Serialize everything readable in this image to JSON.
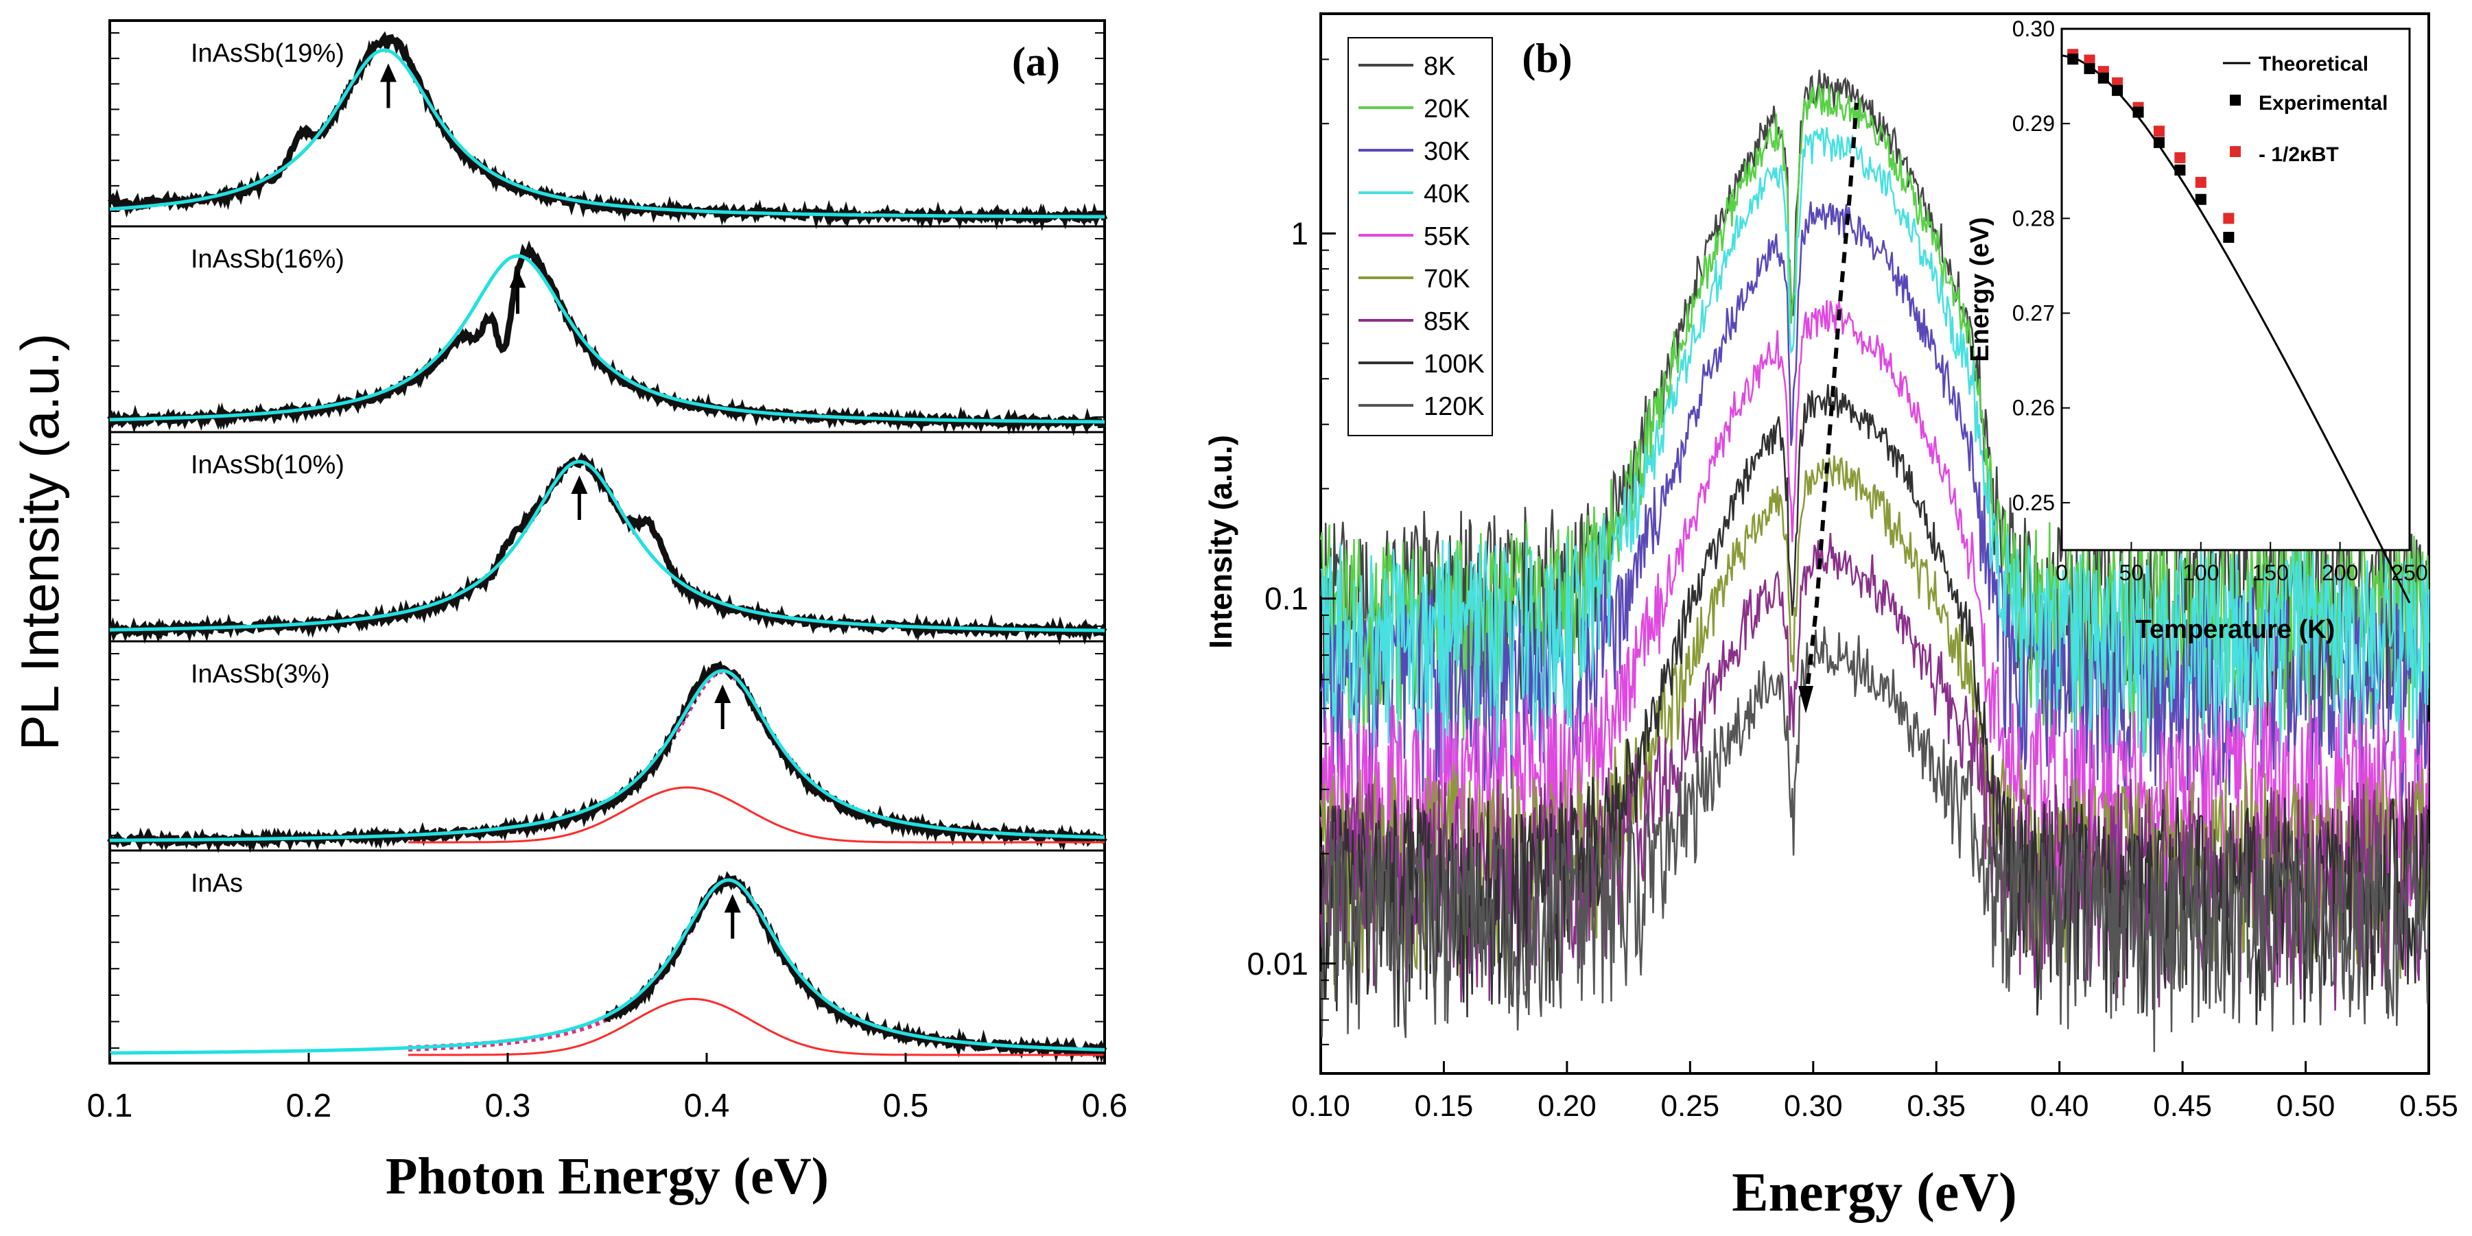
{
  "chart_data": [
    {
      "id": "a",
      "type": "line",
      "panel_label": "(a)",
      "xlabel": "Photon Energy (eV)",
      "ylabel": "PL Intensity (a.u.)",
      "xlim": [
        0.1,
        0.6
      ],
      "x_ticks": [
        "0.1",
        "0.2",
        "0.3",
        "0.4",
        "0.5",
        "0.6"
      ],
      "colors": {
        "data": "#111111",
        "fit": "#22e0e0",
        "gauss": "#ff2a2a",
        "total": "#e0308a"
      },
      "subplots": [
        {
          "label": "InAsSb(19%)",
          "peak": 0.238,
          "data_xrange": [
            0.1,
            0.6
          ],
          "arrow_x": 0.24,
          "features": [
            [
              0.095,
              0.008,
              0.07
            ],
            [
              0.124,
              0.01,
              0.03
            ],
            [
              0.196,
              0.005,
              0.15
            ],
            [
              0.245,
              0.01,
              0.08
            ]
          ],
          "has_gauss": false,
          "has_total": false
        },
        {
          "label": "InAsSb(16%)",
          "peak": 0.305,
          "data_xrange": [
            0.1,
            0.6
          ],
          "arrow_x": 0.305,
          "features": [
            [
              0.285,
              0.005,
              -0.25
            ],
            [
              0.298,
              0.004,
              -0.55
            ],
            [
              0.315,
              0.01,
              0.06
            ]
          ],
          "has_gauss": false,
          "has_total": false
        },
        {
          "label": "InAsSb(10%)",
          "peak": 0.336,
          "data_xrange": [
            0.1,
            0.6
          ],
          "arrow_x": 0.336,
          "features": [
            [
              0.291,
              0.004,
              -0.15
            ],
            [
              0.302,
              0.01,
              0.1
            ],
            [
              0.372,
              0.006,
              0.2
            ]
          ],
          "has_gauss": false,
          "has_total": false
        },
        {
          "label": "InAsSb(3%)",
          "peak": 0.408,
          "data_xrange": [
            0.1,
            0.6
          ],
          "arrow_x": 0.408,
          "features": [
            [
              0.395,
              0.008,
              0.05
            ]
          ],
          "has_gauss": true,
          "has_total": true
        },
        {
          "label": "InAs",
          "peak": 0.411,
          "data_xrange": [
            0.35,
            0.6
          ],
          "arrow_x": 0.413,
          "features": [],
          "has_gauss": true,
          "has_total": true
        }
      ]
    },
    {
      "id": "b",
      "type": "line",
      "panel_label": "(b)",
      "xlabel": "Energy (eV)",
      "ylabel": "Intensity (a.u.)",
      "xlim": [
        0.1,
        0.55
      ],
      "yscale": "log",
      "ylim": [
        0.005,
        4
      ],
      "x_ticks": [
        "0.10",
        "0.15",
        "0.20",
        "0.25",
        "0.30",
        "0.35",
        "0.40",
        "0.45",
        "0.50",
        "0.55"
      ],
      "y_ticks": [
        {
          "v": 0.01,
          "label": "0.01"
        },
        {
          "v": 0.1,
          "label": "0.1"
        },
        {
          "v": 1,
          "label": "1"
        }
      ],
      "series": [
        {
          "name": "8K",
          "color": "#444444",
          "peak": 2.4,
          "floor": 0.1
        },
        {
          "name": "20K",
          "color": "#5ad048",
          "peak": 2.2,
          "floor": 0.09
        },
        {
          "name": "30K",
          "color": "#5a48b8",
          "peak": 1.05,
          "floor": 0.06
        },
        {
          "name": "40K",
          "color": "#48e0e0",
          "peak": 1.7,
          "floor": 0.08
        },
        {
          "name": "55K",
          "color": "#e048e0",
          "peak": 0.56,
          "floor": 0.03
        },
        {
          "name": "70K",
          "color": "#8a9a38",
          "peak": 0.2,
          "floor": 0.02
        },
        {
          "name": "85K",
          "color": "#8a308a",
          "peak": 0.11,
          "floor": 0.018
        },
        {
          "name": "100K",
          "color": "#303030",
          "peak": 0.33,
          "floor": 0.016
        },
        {
          "name": "120K",
          "color": "#555555",
          "peak": 0.055,
          "floor": 0.014
        }
      ],
      "inset": {
        "xlabel": "Temperature (K)",
        "ylabel": "Energy (eV)",
        "xlim": [
          0,
          250
        ],
        "ylim": [
          0.245,
          0.3
        ],
        "x_ticks": [
          "0",
          "50",
          "100",
          "150",
          "200",
          "250"
        ],
        "y_ticks": [
          "0.25",
          "0.26",
          "0.27",
          "0.28",
          "0.29",
          "0.30"
        ],
        "legend": [
          "Theoretical",
          "Experimental",
          "- 1/2κBT"
        ],
        "theoretical_T": [
          0,
          10,
          20,
          30,
          40,
          50,
          60,
          70,
          80,
          90,
          100,
          110,
          120,
          130,
          140,
          150,
          160,
          170,
          180,
          190,
          200,
          210,
          220,
          230,
          240,
          250
        ],
        "experimental": [
          [
            8,
            0.2968
          ],
          [
            20,
            0.2958
          ],
          [
            30,
            0.2948
          ],
          [
            40,
            0.2935
          ],
          [
            55,
            0.2912
          ],
          [
            70,
            0.288
          ],
          [
            85,
            0.2851
          ],
          [
            100,
            0.282
          ],
          [
            120,
            0.278
          ]
        ],
        "half_kbt": [
          [
            8,
            0.2973
          ],
          [
            20,
            0.2967
          ],
          [
            30,
            0.2955
          ],
          [
            40,
            0.2943
          ],
          [
            55,
            0.2917
          ],
          [
            70,
            0.2892
          ],
          [
            85,
            0.2864
          ],
          [
            100,
            0.2838
          ],
          [
            120,
            0.28
          ]
        ]
      }
    }
  ]
}
